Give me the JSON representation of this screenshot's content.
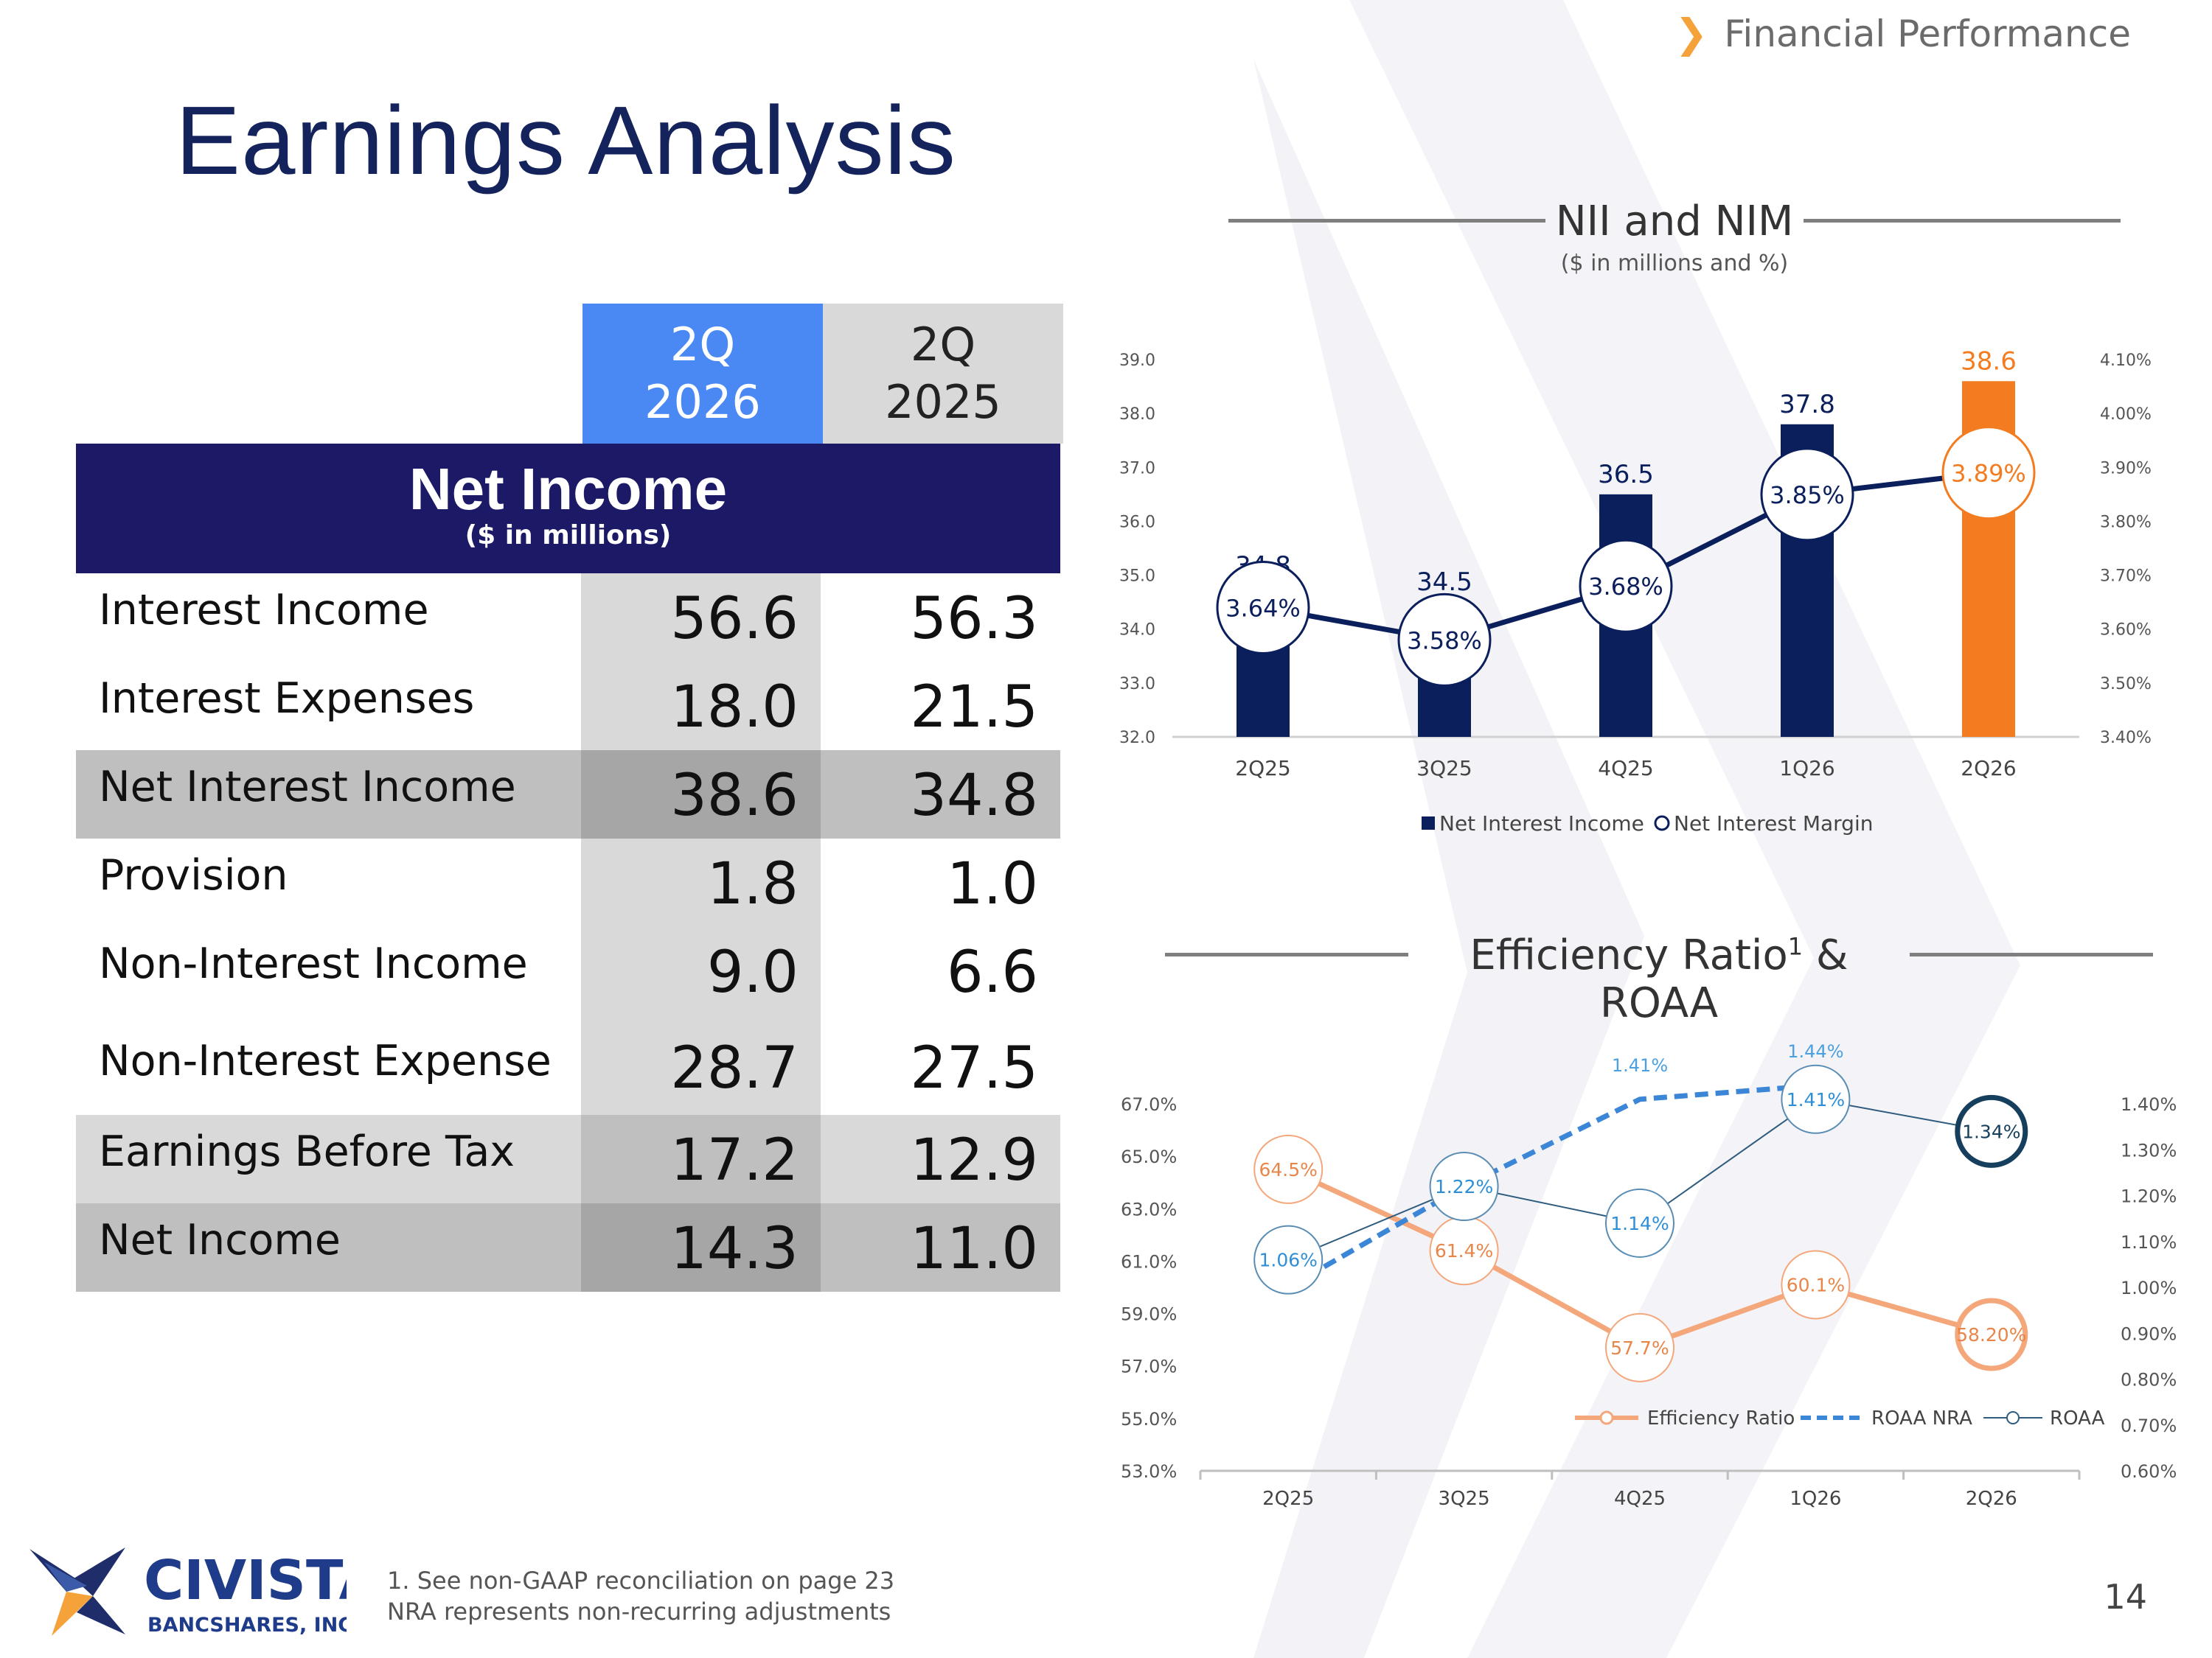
{
  "breadcrumb": "Financial Performance",
  "page_title": "Earnings Analysis",
  "table": {
    "col_headers": [
      [
        "2Q",
        "2026"
      ],
      [
        "2Q",
        "2025"
      ]
    ],
    "section_title": "Net Income",
    "section_subtitle": "($ in millions)",
    "rows": [
      {
        "label": "Interest Income",
        "cur": "56.6",
        "prev": "56.3"
      },
      {
        "label": "Interest Expenses",
        "cur": "18.0",
        "prev": "21.5"
      },
      {
        "label": "Net Interest Income",
        "cur": "38.6",
        "prev": "34.8"
      },
      {
        "label": "Provision",
        "cur": "1.8",
        "prev": "1.0"
      },
      {
        "label": "Non-Interest Income",
        "cur": "9.0",
        "prev": "6.6"
      },
      {
        "label": "Non-Interest Expense",
        "cur": "28.7",
        "prev": "27.5"
      },
      {
        "label": "Earnings Before Tax",
        "cur": "17.2",
        "prev": "12.9"
      },
      {
        "label": "Net Income",
        "cur": "14.3",
        "prev": "11.0"
      }
    ]
  },
  "chart_data": [
    {
      "type": "bar",
      "title": "NII and NIM",
      "subtitle": "($ in millions and %)",
      "categories": [
        "2Q25",
        "3Q25",
        "4Q25",
        "1Q26",
        "2Q26"
      ],
      "series": [
        {
          "name": "Net Interest Income",
          "type": "bar",
          "axis": "left",
          "values": [
            34.8,
            34.5,
            36.5,
            37.8,
            38.6
          ],
          "labels": [
            "34.8",
            "34.5",
            "36.5",
            "37.8",
            "38.6"
          ],
          "colors": [
            "#0b1f5c",
            "#0b1f5c",
            "#0b1f5c",
            "#0b1f5c",
            "#f47c20"
          ]
        },
        {
          "name": "Net Interest Margin",
          "type": "line",
          "axis": "right",
          "values": [
            3.64,
            3.58,
            3.68,
            3.85,
            3.89
          ],
          "labels": [
            "3.64%",
            "3.58%",
            "3.68%",
            "3.85%",
            "3.89%"
          ]
        }
      ],
      "y_left": {
        "min": 32.0,
        "max": 39.0,
        "ticks": [
          "32.0",
          "33.0",
          "34.0",
          "35.0",
          "36.0",
          "37.0",
          "38.0",
          "39.0"
        ]
      },
      "y_right": {
        "min": 3.4,
        "max": 4.1,
        "ticks": [
          "3.40%",
          "3.50%",
          "3.60%",
          "3.70%",
          "3.80%",
          "3.90%",
          "4.00%",
          "4.10%"
        ]
      },
      "legend": "bottom",
      "legend_items": [
        "Net Interest Income",
        "Net Interest Margin"
      ]
    },
    {
      "type": "line",
      "title": "Efficiency Ratio",
      "title_sup": "1",
      "title_suffix": " & ROAA",
      "categories": [
        "2Q25",
        "3Q25",
        "4Q25",
        "1Q26",
        "2Q26"
      ],
      "series": [
        {
          "name": "Efficiency Ratio",
          "axis": "left",
          "color": "#f4a77a",
          "values": [
            64.5,
            61.4,
            57.7,
            60.1,
            58.2
          ],
          "labels": [
            "64.5%",
            "61.4%",
            "57.7%",
            "60.1%",
            "58.20%"
          ]
        },
        {
          "name": "ROAA NRA",
          "axis": "right",
          "color": "#3b86d6",
          "dashed": true,
          "values": [
            1.0,
            1.22,
            1.41,
            1.44,
            null
          ],
          "labels": [
            "",
            "",
            "1.41%",
            "1.44%",
            ""
          ]
        },
        {
          "name": "ROAA",
          "axis": "right",
          "color": "#2f5c7e",
          "values": [
            1.06,
            1.22,
            1.14,
            1.41,
            1.34
          ],
          "labels": [
            "1.06%",
            "1.22%",
            "1.14%",
            "1.41%",
            "1.34%"
          ]
        }
      ],
      "y_left": {
        "min": 53.0,
        "max": 67.0,
        "ticks": [
          "53.0%",
          "55.0%",
          "57.0%",
          "59.0%",
          "61.0%",
          "63.0%",
          "65.0%",
          "67.0%"
        ]
      },
      "y_right": {
        "min": 0.6,
        "max": 1.4,
        "ticks": [
          "0.60%",
          "0.70%",
          "0.80%",
          "0.90%",
          "1.00%",
          "1.10%",
          "1.20%",
          "1.30%",
          "1.40%"
        ]
      },
      "legend": "bottom-right",
      "legend_items": [
        "Efficiency Ratio",
        "ROAA NRA",
        "ROAA"
      ]
    }
  ],
  "footnotes": [
    "1. See non-GAAP reconciliation on page 23",
    "NRA represents non-recurring adjustments"
  ],
  "logo": {
    "name": "CIVISTA",
    "sub": "BANCSHARES, INC."
  },
  "page_number": "14",
  "colors": {
    "navy": "#14235c",
    "orange": "#f47c20",
    "blue_header": "#4a89f3",
    "banner": "#1c1a66"
  }
}
